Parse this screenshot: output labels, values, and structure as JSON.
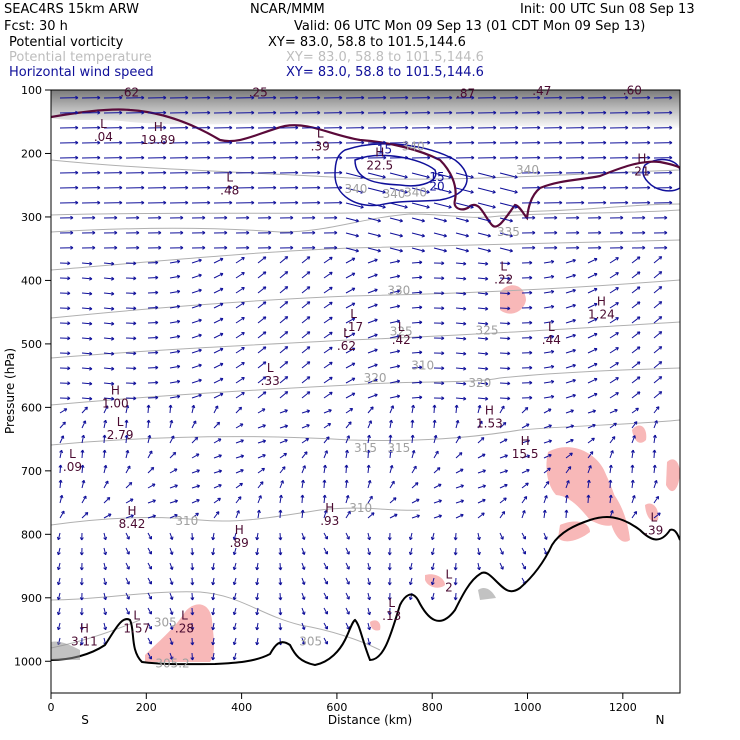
{
  "header": {
    "model": "SEAC4RS 15km ARW",
    "forecast": "Fcst:    30 h",
    "center": "NCAR/MMM",
    "init": "Init: 00 UTC Sun 08 Sep 13",
    "valid": "Valid: 06 UTC Mon 09 Sep 13 (01 CDT Mon 09 Sep 13)"
  },
  "fields": [
    {
      "name": "Potential vorticity",
      "xy": "XY=  83.0, 58.8 to 101.5,144.6",
      "color": "#000000"
    },
    {
      "name": "Potential temperature",
      "xy": "XY=  83.0, 58.8 to 101.5,144.6",
      "color": "#bdbdbd"
    },
    {
      "name": "Horizontal wind speed",
      "xy": "XY=  83.0, 58.8 to 101.5,144.6",
      "color": "#10109a"
    }
  ],
  "colors": {
    "wind": "#10109a",
    "theta": "#b0b0b0",
    "pv": "#5a0a3a",
    "shade": "#f8b8b8",
    "ground": "#000000"
  },
  "axes": {
    "ylabel": "Pressure (hPa)",
    "xlabel": "Distance (km)",
    "yticks": [
      "100",
      "200",
      "300",
      "400",
      "500",
      "600",
      "700",
      "800",
      "900",
      "1000"
    ],
    "xticks": [
      "0",
      "200",
      "400",
      "600",
      "800",
      "1000",
      "1200"
    ],
    "left_end": "S",
    "right_end": "N"
  },
  "chart_data": {
    "type": "cross-section",
    "ylabel": "Pressure (hPa)",
    "xlabel": "Distance (km)",
    "xlim": [
      0,
      1320
    ],
    "ylim": [
      1050,
      100
    ],
    "theta_labels": [
      {
        "text": "340",
        "x": 760,
        "p": 195
      },
      {
        "text": "340",
        "x": 640,
        "p": 262
      },
      {
        "text": "340",
        "x": 720,
        "p": 270
      },
      {
        "text": "340",
        "x": 1000,
        "p": 232
      },
      {
        "text": "340",
        "x": 765,
        "p": 268
      },
      {
        "text": "335",
        "x": 960,
        "p": 330
      },
      {
        "text": "330",
        "x": 730,
        "p": 422
      },
      {
        "text": "325",
        "x": 915,
        "p": 485
      },
      {
        "text": "325",
        "x": 735,
        "p": 487
      },
      {
        "text": "320",
        "x": 680,
        "p": 560
      },
      {
        "text": "320",
        "x": 900,
        "p": 568
      },
      {
        "text": "315",
        "x": 660,
        "p": 670
      },
      {
        "text": "315",
        "x": 730,
        "p": 670
      },
      {
        "text": "310",
        "x": 285,
        "p": 785
      },
      {
        "text": "310",
        "x": 650,
        "p": 765
      },
      {
        "text": "310",
        "x": 780,
        "p": 540
      },
      {
        "text": "305",
        "x": 240,
        "p": 945
      },
      {
        "text": "305.2",
        "x": 255,
        "p": 1010
      },
      {
        "text": "305",
        "x": 545,
        "p": 975
      }
    ],
    "pv_top_labels": [
      {
        "text": ".62",
        "x": 165,
        "p": 110
      },
      {
        "text": ".25",
        "x": 435,
        "p": 110
      },
      {
        "text": ".87",
        "x": 870,
        "p": 112
      },
      {
        "text": ".47",
        "x": 1030,
        "p": 108
      },
      {
        "text": ".60",
        "x": 1220,
        "p": 107
      }
    ],
    "extrema": [
      {
        "kind": "L",
        "value": ".04",
        "x": 110,
        "p": 180
      },
      {
        "kind": "H",
        "value": "19.89",
        "x": 225,
        "p": 185
      },
      {
        "kind": "L",
        "value": ".39",
        "x": 565,
        "p": 195
      },
      {
        "kind": "H",
        "value": "22.5",
        "x": 690,
        "p": 225
      },
      {
        "kind": "H",
        "value": "21",
        "x": 1240,
        "p": 235
      },
      {
        "kind": "L",
        "value": ".48",
        "x": 375,
        "p": 265
      },
      {
        "kind": "L",
        "value": ".22",
        "x": 950,
        "p": 405
      },
      {
        "kind": "H",
        "value": "1.24",
        "x": 1155,
        "p": 460
      },
      {
        "kind": "L",
        "value": ".62",
        "x": 620,
        "p": 510
      },
      {
        "kind": "L",
        "value": ".17",
        "x": 635,
        "p": 480
      },
      {
        "kind": "L",
        "value": ".42",
        "x": 735,
        "p": 500
      },
      {
        "kind": "L",
        "value": ".44",
        "x": 1050,
        "p": 500
      },
      {
        "kind": "L",
        "value": ".33",
        "x": 460,
        "p": 565
      },
      {
        "kind": "H",
        "value": "1.00",
        "x": 135,
        "p": 600
      },
      {
        "kind": "L",
        "value": "2.79",
        "x": 145,
        "p": 650
      },
      {
        "kind": "H",
        "value": "1.53",
        "x": 920,
        "p": 632
      },
      {
        "kind": "H",
        "value": "15.5",
        "x": 995,
        "p": 680
      },
      {
        "kind": "L",
        "value": ".09",
        "x": 45,
        "p": 700
      },
      {
        "kind": "H",
        "value": "8.42",
        "x": 170,
        "p": 790
      },
      {
        "kind": "H",
        "value": ".93",
        "x": 585,
        "p": 785
      },
      {
        "kind": "H",
        "value": ".89",
        "x": 395,
        "p": 820
      },
      {
        "kind": "L",
        "value": ".39",
        "x": 1265,
        "p": 800
      },
      {
        "kind": "L",
        "value": "2",
        "x": 835,
        "p": 890
      },
      {
        "kind": "L",
        "value": ".13",
        "x": 715,
        "p": 935
      },
      {
        "kind": "L",
        "value": "1.57",
        "x": 180,
        "p": 955
      },
      {
        "kind": "L",
        "value": ".28",
        "x": 280,
        "p": 955
      },
      {
        "kind": "H",
        "value": "3.11",
        "x": 70,
        "p": 975
      }
    ],
    "wind_labels": [
      {
        "text": "15",
        "x": 700,
        "p": 200
      },
      {
        "text": "15",
        "x": 810,
        "p": 243
      },
      {
        "text": "20",
        "x": 810,
        "p": 258
      }
    ]
  }
}
